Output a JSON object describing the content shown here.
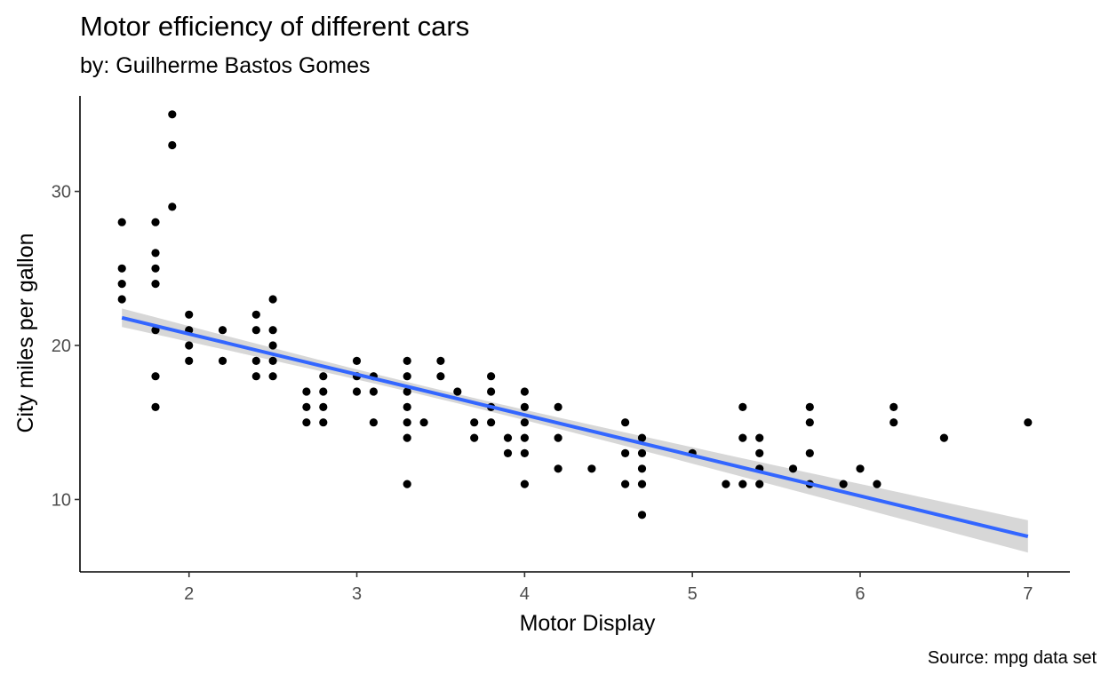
{
  "chart_data": {
    "type": "scatter",
    "title": "Motor efficiency of different cars",
    "subtitle": "by: Guilherme Bastos Gomes",
    "caption": "Source: mpg data set",
    "xlabel": "Motor Display",
    "ylabel": "City miles per gallon",
    "xlim": [
      1.35,
      7.25
    ],
    "ylim": [
      5.3,
      36.2
    ],
    "x_ticks": [
      2,
      3,
      4,
      5,
      6,
      7
    ],
    "y_ticks": [
      10,
      20,
      30
    ],
    "grid": false,
    "point_color": "#000000",
    "points": [
      [
        1.6,
        28
      ],
      [
        1.6,
        25
      ],
      [
        1.6,
        24
      ],
      [
        1.6,
        23
      ],
      [
        1.8,
        28
      ],
      [
        1.8,
        26
      ],
      [
        1.8,
        25
      ],
      [
        1.8,
        24
      ],
      [
        1.8,
        21
      ],
      [
        1.8,
        18
      ],
      [
        1.8,
        16
      ],
      [
        1.9,
        35
      ],
      [
        1.9,
        33
      ],
      [
        1.9,
        29
      ],
      [
        2.0,
        22
      ],
      [
        2.0,
        21
      ],
      [
        2.0,
        20
      ],
      [
        2.0,
        19
      ],
      [
        2.2,
        21
      ],
      [
        2.2,
        19
      ],
      [
        2.4,
        22
      ],
      [
        2.4,
        21
      ],
      [
        2.4,
        19
      ],
      [
        2.4,
        18
      ],
      [
        2.5,
        23
      ],
      [
        2.5,
        21
      ],
      [
        2.5,
        20
      ],
      [
        2.5,
        19
      ],
      [
        2.5,
        18
      ],
      [
        2.7,
        17
      ],
      [
        2.7,
        16
      ],
      [
        2.7,
        15
      ],
      [
        2.8,
        18
      ],
      [
        2.8,
        17
      ],
      [
        2.8,
        16
      ],
      [
        2.8,
        15
      ],
      [
        3.0,
        19
      ],
      [
        3.0,
        18
      ],
      [
        3.0,
        17
      ],
      [
        3.1,
        18
      ],
      [
        3.1,
        17
      ],
      [
        3.1,
        15
      ],
      [
        3.3,
        19
      ],
      [
        3.3,
        18
      ],
      [
        3.3,
        17
      ],
      [
        3.3,
        16
      ],
      [
        3.3,
        15
      ],
      [
        3.3,
        14
      ],
      [
        3.3,
        11
      ],
      [
        3.4,
        15
      ],
      [
        3.5,
        19
      ],
      [
        3.5,
        18
      ],
      [
        3.6,
        17
      ],
      [
        3.7,
        15
      ],
      [
        3.7,
        14
      ],
      [
        3.8,
        18
      ],
      [
        3.8,
        17
      ],
      [
        3.8,
        16
      ],
      [
        3.8,
        15
      ],
      [
        3.9,
        14
      ],
      [
        3.9,
        13
      ],
      [
        4.0,
        17
      ],
      [
        4.0,
        16
      ],
      [
        4.0,
        15
      ],
      [
        4.0,
        14
      ],
      [
        4.0,
        13
      ],
      [
        4.0,
        11
      ],
      [
        4.2,
        16
      ],
      [
        4.2,
        14
      ],
      [
        4.2,
        12
      ],
      [
        4.4,
        12
      ],
      [
        4.6,
        15
      ],
      [
        4.6,
        13
      ],
      [
        4.6,
        11
      ],
      [
        4.7,
        14
      ],
      [
        4.7,
        13
      ],
      [
        4.7,
        12
      ],
      [
        4.7,
        11
      ],
      [
        4.7,
        9
      ],
      [
        5.0,
        13
      ],
      [
        5.2,
        11
      ],
      [
        5.3,
        16
      ],
      [
        5.3,
        14
      ],
      [
        5.3,
        11
      ],
      [
        5.4,
        14
      ],
      [
        5.4,
        13
      ],
      [
        5.4,
        12
      ],
      [
        5.4,
        11
      ],
      [
        5.6,
        12
      ],
      [
        5.7,
        16
      ],
      [
        5.7,
        15
      ],
      [
        5.7,
        13
      ],
      [
        5.7,
        11
      ],
      [
        5.9,
        11
      ],
      [
        6.0,
        12
      ],
      [
        6.1,
        11
      ],
      [
        6.2,
        16
      ],
      [
        6.2,
        15
      ],
      [
        6.5,
        14
      ],
      [
        7.0,
        15
      ]
    ],
    "trend": {
      "method": "linear",
      "color": "#3366FF",
      "band_color": "#D3D3D3",
      "x_range": [
        1.6,
        7.0
      ],
      "y_range": [
        21.8,
        7.6
      ],
      "band_halfwidth_ends": [
        0.6,
        1.05
      ],
      "band_halfwidth_center": 0.3,
      "band_center_x": 3.47
    }
  }
}
